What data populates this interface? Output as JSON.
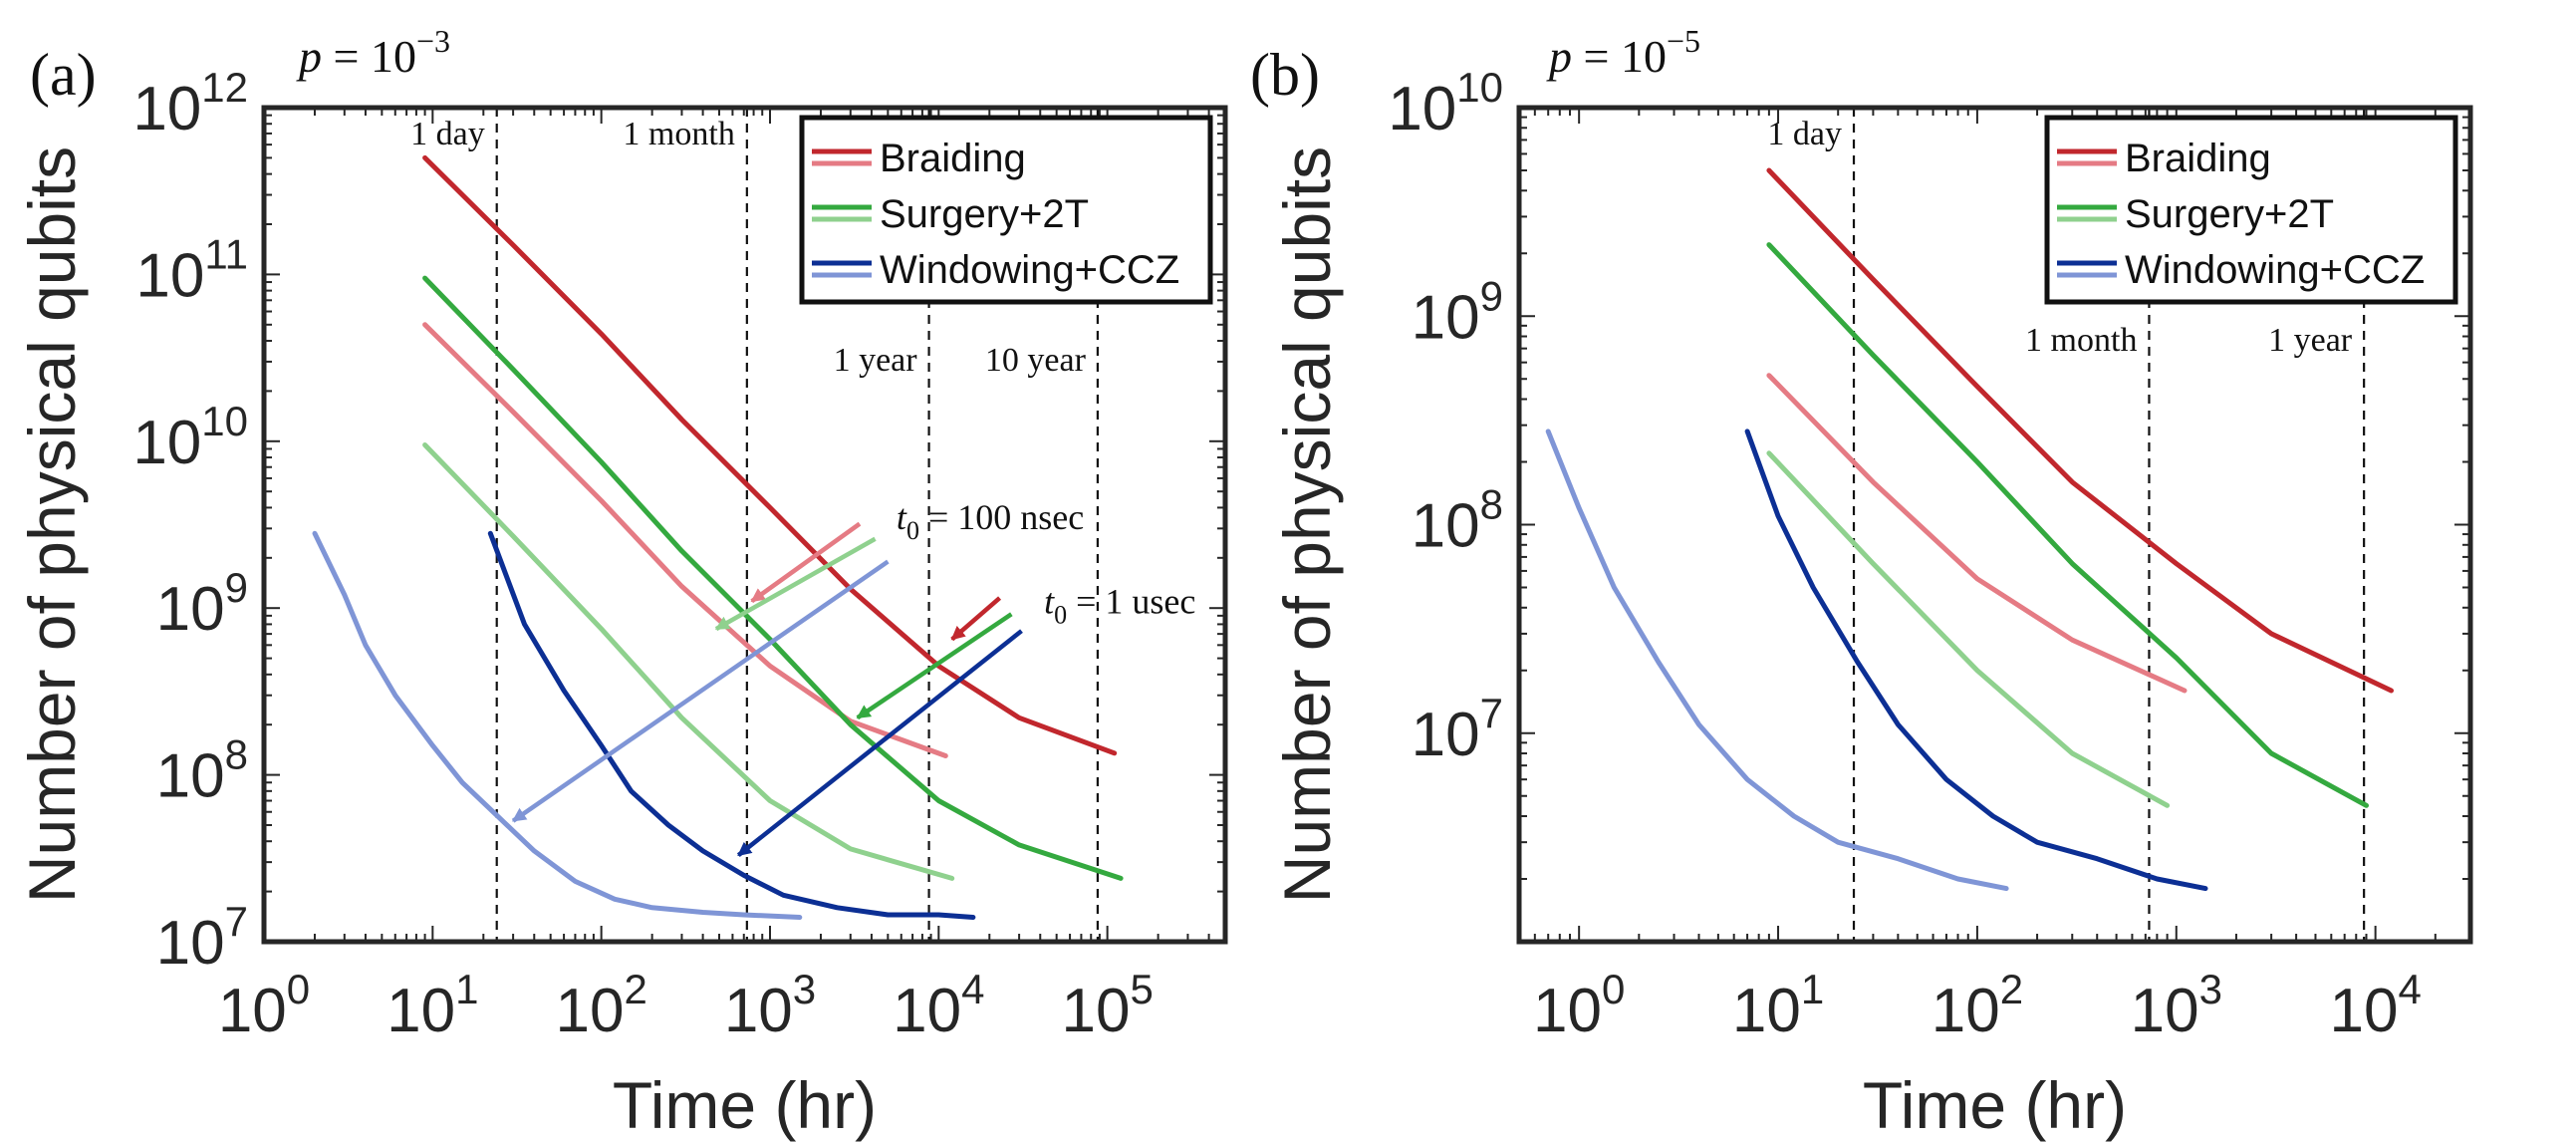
{
  "chart_data": [
    {
      "type": "line",
      "panel_label": "(a)",
      "title_p": "10",
      "title_exp": "−3",
      "xlabel": "Time (hr)",
      "ylabel": "Number of physical qubits",
      "xscale": "log",
      "yscale": "log",
      "xlim": [
        1,
        500000
      ],
      "ylim": [
        10000000.0,
        1000000000000.0
      ],
      "xticks": [
        {
          "v": 1,
          "e": "0"
        },
        {
          "v": 10,
          "e": "1"
        },
        {
          "v": 100,
          "e": "2"
        },
        {
          "v": 1000,
          "e": "3"
        },
        {
          "v": 10000,
          "e": "4"
        },
        {
          "v": 100000,
          "e": "5"
        }
      ],
      "yticks": [
        {
          "v": 10000000.0,
          "e": "7"
        },
        {
          "v": 100000000.0,
          "e": "8"
        },
        {
          "v": 1000000000.0,
          "e": "9"
        },
        {
          "v": 10000000000.0,
          "e": "10"
        },
        {
          "v": 100000000000.0,
          "e": "11"
        },
        {
          "v": 1000000000000.0,
          "e": "12"
        }
      ],
      "legend": [
        "Braiding",
        "Surgery+2T",
        "Windowing+CCZ"
      ],
      "legend_position": "top-right",
      "vlines": [
        {
          "x": 24,
          "label": "1 day"
        },
        {
          "x": 730,
          "label": "1 month"
        },
        {
          "x": 8760,
          "label": "1 year"
        },
        {
          "x": 87600,
          "label": "10 year"
        }
      ],
      "annotations": [
        {
          "label": "t",
          "sub": "0",
          "rest": " = 100 nsec",
          "x": 4000,
          "y": 3500000000.0
        },
        {
          "label": "t",
          "sub": "0",
          "rest": " = 1 usec",
          "x": 30000,
          "y": 1100000000.0
        }
      ],
      "series": [
        {
          "name": "Braiding (1 usec)",
          "color": "#c1272d",
          "x": [
            9,
            30,
            100,
            300,
            1000,
            3000,
            10000,
            30000,
            110000
          ],
          "y": [
            500000000000.0,
            150000000000.0,
            44000000000.0,
            13500000000.0,
            4000000000.0,
            1300000000.0,
            450000000.0,
            220000000.0,
            135000000.0
          ]
        },
        {
          "name": "Braiding (100 nsec)",
          "color": "#e57b84",
          "x": [
            9,
            30,
            100,
            300,
            1000,
            3000,
            11000
          ],
          "y": [
            50000000000.0,
            15000000000.0,
            4400000000.0,
            1350000000.0,
            450000000.0,
            210000000.0,
            130000000.0
          ]
        },
        {
          "name": "Surgery+2T (1 usec)",
          "color": "#34a93f",
          "x": [
            9,
            30,
            100,
            300,
            1000,
            3000,
            10000,
            30000,
            120000
          ],
          "y": [
            95000000000.0,
            27000000000.0,
            7500000000.0,
            2200000000.0,
            650000000.0,
            200000000.0,
            70000000.0,
            38000000.0,
            24000000.0
          ]
        },
        {
          "name": "Surgery+2T (100 nsec)",
          "color": "#8fd18e",
          "x": [
            9,
            30,
            100,
            300,
            1000,
            3000,
            12000
          ],
          "y": [
            9500000000.0,
            2700000000.0,
            750000000.0,
            220000000.0,
            70000000.0,
            36000000.0,
            24000000.0
          ]
        },
        {
          "name": "Windowing+CCZ (1 usec)",
          "color": "#0c2f94",
          "x": [
            22,
            35,
            60,
            100,
            150,
            250,
            400,
            700,
            1200,
            2500,
            5000,
            10000,
            16000
          ],
          "y": [
            2800000000.0,
            800000000.0,
            320000000.0,
            150000000.0,
            80000000.0,
            50000000.0,
            35000000.0,
            25000000.0,
            19000000.0,
            16000000.0,
            14500000.0,
            14500000.0,
            14000000.0
          ]
        },
        {
          "name": "Windowing+CCZ (100 nsec)",
          "color": "#7f95d6",
          "x": [
            2,
            3,
            4,
            6,
            10,
            15,
            25,
            40,
            70,
            120,
            200,
            400,
            700,
            1500
          ],
          "y": [
            2800000000.0,
            1200000000.0,
            600000000.0,
            300000000.0,
            150000000.0,
            90000000.0,
            55000000.0,
            35000000.0,
            23000000.0,
            18000000.0,
            16000000.0,
            15000000.0,
            14500000.0,
            14000000.0
          ]
        }
      ]
    },
    {
      "type": "line",
      "panel_label": "(b)",
      "title_p": "10",
      "title_exp": "−5",
      "xlabel": "Time (hr)",
      "ylabel": "Number of physical qubits",
      "xscale": "log",
      "yscale": "log",
      "xlim": [
        0.5,
        30000
      ],
      "ylim": [
        1000000.0,
        10000000000.0
      ],
      "xticks": [
        {
          "v": 1,
          "e": "0"
        },
        {
          "v": 10,
          "e": "1"
        },
        {
          "v": 100,
          "e": "2"
        },
        {
          "v": 1000,
          "e": "3"
        },
        {
          "v": 10000,
          "e": "4"
        }
      ],
      "yticks": [
        {
          "v": 10000000.0,
          "e": "7"
        },
        {
          "v": 100000000.0,
          "e": "8"
        },
        {
          "v": 1000000000.0,
          "e": "9"
        },
        {
          "v": 10000000000.0,
          "e": "10"
        }
      ],
      "legend": [
        "Braiding",
        "Surgery+2T",
        "Windowing+CCZ"
      ],
      "legend_position": "top-right",
      "vlines": [
        {
          "x": 24,
          "label": "1 day"
        },
        {
          "x": 730,
          "label": "1 month"
        },
        {
          "x": 8760,
          "label": "1 year"
        }
      ],
      "series": [
        {
          "name": "Braiding (1 usec)",
          "color": "#c1272d",
          "x": [
            9,
            30,
            100,
            300,
            1000,
            3000,
            12000
          ],
          "y": [
            5000000000.0,
            1500000000.0,
            460000000.0,
            160000000.0,
            65000000.0,
            30000000.0,
            16000000.0
          ]
        },
        {
          "name": "Braiding (100 nsec)",
          "color": "#e57b84",
          "x": [
            9,
            30,
            100,
            300,
            1100
          ],
          "y": [
            520000000.0,
            160000000.0,
            55000000.0,
            28000000.0,
            16000000.0
          ]
        },
        {
          "name": "Surgery+2T (1 usec)",
          "color": "#34a93f",
          "x": [
            9,
            30,
            100,
            300,
            1000,
            3000,
            9000
          ],
          "y": [
            2200000000.0,
            650000000.0,
            200000000.0,
            65000000.0,
            23000000.0,
            8000000.0,
            4500000.0
          ]
        },
        {
          "name": "Surgery+2T (100 nsec)",
          "color": "#8fd18e",
          "x": [
            9,
            30,
            100,
            300,
            900
          ],
          "y": [
            220000000.0,
            65000000.0,
            20000000.0,
            8000000.0,
            4500000.0
          ]
        },
        {
          "name": "Windowing+CCZ (1 usec)",
          "color": "#0c2f94",
          "x": [
            7,
            10,
            15,
            25,
            40,
            70,
            120,
            200,
            400,
            800,
            1400
          ],
          "y": [
            280000000.0,
            110000000.0,
            50000000.0,
            22000000.0,
            11000000.0,
            6000000.0,
            4000000.0,
            3000000.0,
            2500000.0,
            2000000.0,
            1800000.0
          ]
        },
        {
          "name": "Windowing+CCZ (100 nsec)",
          "color": "#7f95d6",
          "x": [
            0.7,
            1,
            1.5,
            2.5,
            4,
            7,
            12,
            20,
            40,
            80,
            140
          ],
          "y": [
            280000000.0,
            120000000.0,
            50000000.0,
            22000000.0,
            11000000.0,
            6000000.0,
            4000000.0,
            3000000.0,
            2500000.0,
            2000000.0,
            1800000.0
          ]
        }
      ]
    }
  ]
}
